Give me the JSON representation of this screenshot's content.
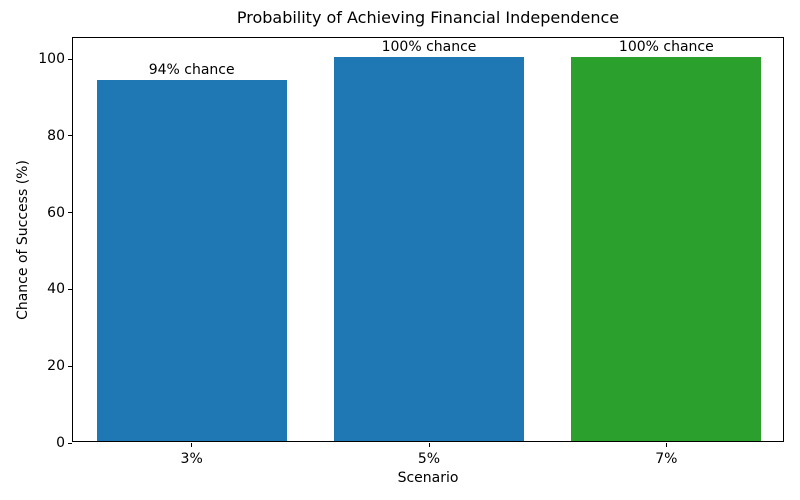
{
  "chart_data": {
    "type": "bar",
    "title": "Probability of Achieving Financial Independence",
    "xlabel": "Scenario",
    "ylabel": "Chance of Success (%)",
    "categories": [
      "3%",
      "5%",
      "7%"
    ],
    "values": [
      94,
      100,
      100
    ],
    "bar_labels": [
      "94% chance",
      "100% chance",
      "100% chance"
    ],
    "bar_colors": [
      "#1f77b4",
      "#1f77b4",
      "#2ca02c"
    ],
    "yticks": [
      0,
      20,
      40,
      60,
      80,
      100
    ],
    "ylim": [
      0,
      105.5
    ],
    "bar_width_fraction": 0.8,
    "grid": false,
    "legend": false
  }
}
